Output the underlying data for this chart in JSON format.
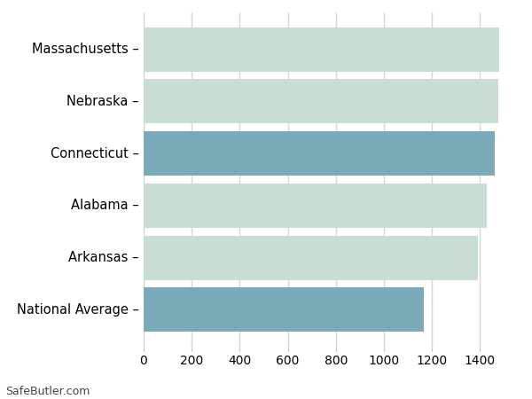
{
  "categories": [
    "Massachusetts –",
    "Nebraska –",
    "Connecticut –",
    "Alabama –",
    "Arkansas –",
    "National Average –"
  ],
  "values": [
    1480,
    1475,
    1462,
    1430,
    1390,
    1165
  ],
  "bar_colors": [
    "#c9ddd3",
    "#c9ddd3",
    "#7aaab8",
    "#c9ddd3",
    "#c9ddd3",
    "#7aaab8"
  ],
  "xlim": [
    0,
    1550
  ],
  "xticks": [
    0,
    200,
    400,
    600,
    800,
    1000,
    1200,
    1400
  ],
  "background_color": "#ffffff",
  "grid_color": "#d0d8d4",
  "label_fontsize": 10.5,
  "tick_fontsize": 10,
  "footer_text": "SafeButler.com",
  "bar_height": 0.85
}
